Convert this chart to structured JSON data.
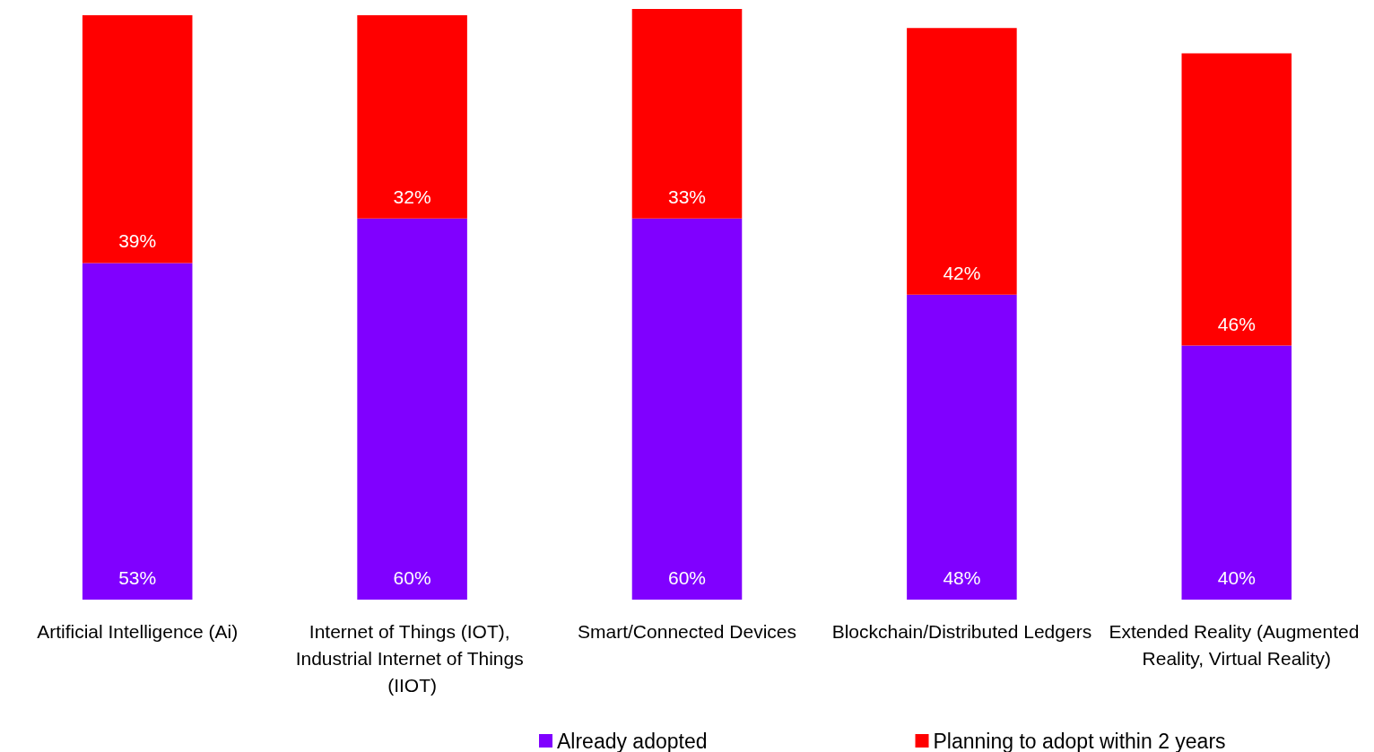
{
  "chart_data": {
    "type": "bar",
    "stacked": true,
    "legend": "bottom",
    "categories": [
      "Artificial Intelligence (Ai)",
      "Internet of Things (IOT), Industrial Internet of Things (IIOT)",
      "Smart/Connected Devices",
      "Blockchain/Distributed Ledgers",
      "Extended Reality (Augmented Reality, Virtual Reality)"
    ],
    "series": [
      {
        "name": "Already adopted",
        "color": "#8000ff",
        "values": [
          53,
          60,
          60,
          48,
          40
        ],
        "value_labels": [
          "53%",
          "60%",
          "60%",
          "48%",
          "40%"
        ]
      },
      {
        "name": "Planning to adopt within 2 years",
        "color": "#ff0000",
        "values": [
          39,
          32,
          33,
          42,
          46
        ],
        "value_labels": [
          "39%",
          "32%",
          "33%",
          "42%",
          "46%"
        ]
      }
    ]
  }
}
